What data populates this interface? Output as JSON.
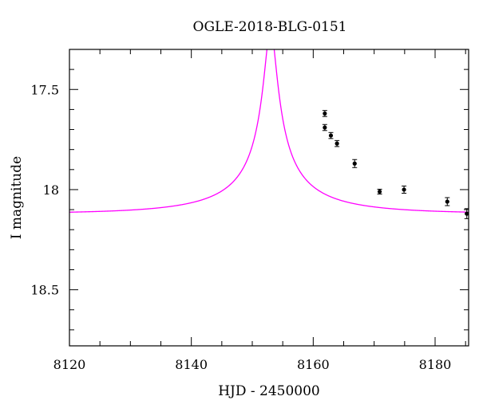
{
  "chart_data": {
    "type": "scatter",
    "title": "OGLE-2018-BLG-0151",
    "xlabel": "HJD - 2450000",
    "ylabel": "I magnitude",
    "xlim": [
      8120,
      8185.5
    ],
    "ylim": [
      18.78,
      17.3
    ],
    "y_inverted": true,
    "x_ticks": [
      8120,
      8140,
      8160,
      8180
    ],
    "x_tick_labels": [
      "8120",
      "8140",
      "8160",
      "8180"
    ],
    "y_ticks": [
      17.5,
      18,
      18.5
    ],
    "y_tick_labels": [
      "17.5",
      "18",
      "18.5"
    ],
    "grid": false,
    "series": [
      {
        "kind": "errorbar-points",
        "color": "#000000",
        "points": [
          {
            "x": 8161.9,
            "y": 17.62,
            "err": 0.015
          },
          {
            "x": 8161.9,
            "y": 17.69,
            "err": 0.015
          },
          {
            "x": 8162.9,
            "y": 17.73,
            "err": 0.015
          },
          {
            "x": 8163.9,
            "y": 17.77,
            "err": 0.015
          },
          {
            "x": 8166.8,
            "y": 17.87,
            "err": 0.02
          },
          {
            "x": 8170.9,
            "y": 18.01,
            "err": 0.012
          },
          {
            "x": 8174.9,
            "y": 18.0,
            "err": 0.018
          },
          {
            "x": 8182.0,
            "y": 18.06,
            "err": 0.02
          },
          {
            "x": 8185.2,
            "y": 18.12,
            "err": 0.025
          }
        ]
      },
      {
        "kind": "model-curve",
        "color": "#ff00ff",
        "model": {
          "t0": 8153.0,
          "u0": 0.05,
          "tE": 19.5,
          "fs": 0.07,
          "fb": 0.93,
          "I_base": 18.12
        }
      }
    ]
  }
}
